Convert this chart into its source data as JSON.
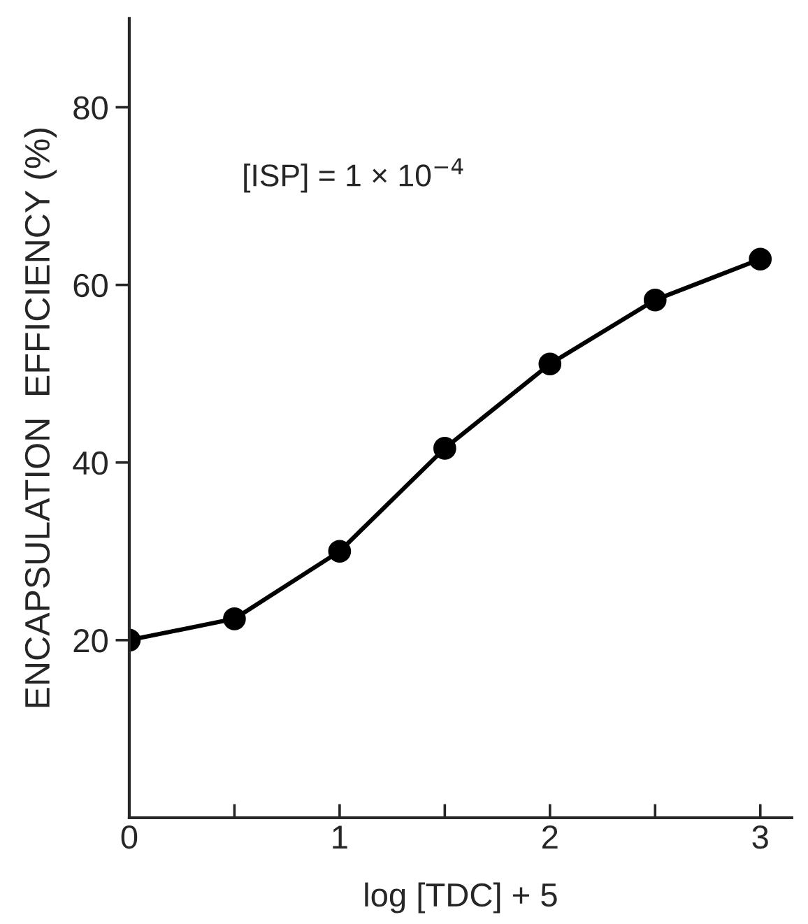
{
  "chart_data": {
    "type": "line",
    "xlabel": "log [TDC] + 5",
    "ylabel": "ENCAPSULATION  EFFICIENCY (%)",
    "annotations": [
      "[ISP] = 1 × 10$^{−4}$"
    ],
    "x": [
      0,
      0.5,
      1,
      1.5,
      2,
      2.5,
      3
    ],
    "series": [
      {
        "color": "#000000",
        "values": [
          20.0,
          22.4,
          30.0,
          41.6,
          51.1,
          58.3,
          62.9
        ]
      }
    ],
    "xlim": [
      0,
      3.15
    ],
    "ylim": [
      0,
      90
    ],
    "xticks": [
      0,
      {
        "value": 0.5,
        "label": null
      },
      1,
      {
        "value": 1.5,
        "label": null
      },
      2,
      {
        "value": 2.5,
        "label": null
      },
      3
    ],
    "yticks": [
      20,
      40,
      60,
      80
    ],
    "marker": "circle",
    "line_style": "solid",
    "grid": false,
    "legend": false
  }
}
